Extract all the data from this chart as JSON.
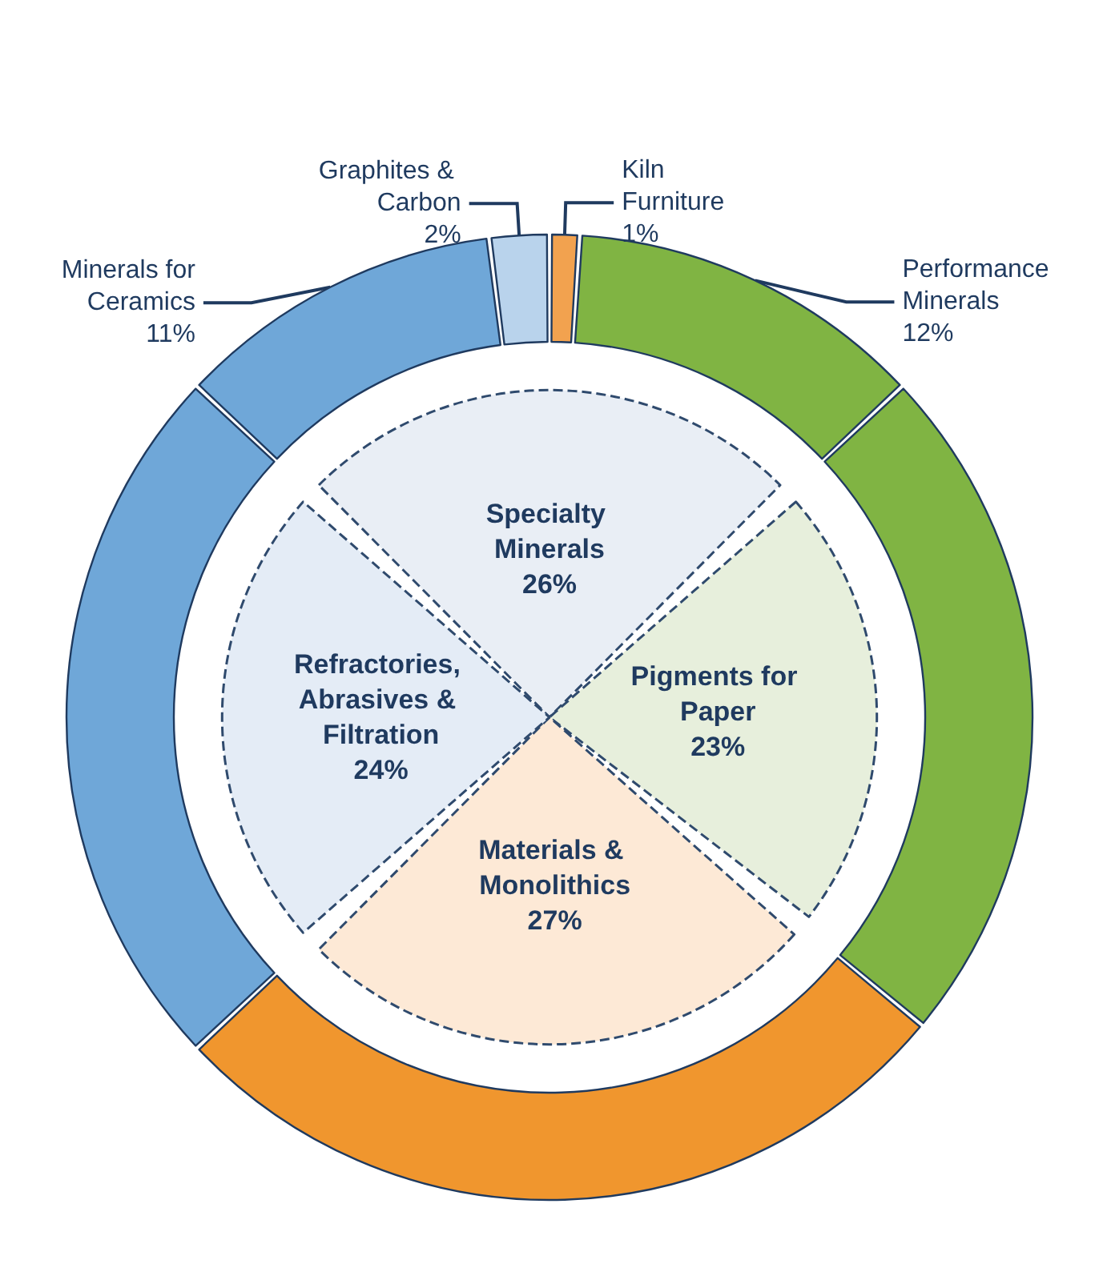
{
  "chart_data": [
    {
      "type": "pie",
      "categories": [
        "Specialty Minerals",
        "Pigments for Paper",
        "Materials & Monolithics",
        "Refractories, Abrasives & Filtration"
      ],
      "values": [
        26,
        23,
        27,
        24
      ],
      "value_labels": [
        "26%",
        "23%",
        "27%",
        "24%"
      ],
      "colors": [
        "#e9eef5",
        "#e7efdc",
        "#fde9d6",
        "#e4ecf6"
      ]
    },
    {
      "type": "donut",
      "categories": [
        "Minerals for Ceramics",
        "Graphites & Carbon",
        "Kiln Furniture",
        "Performance Minerals",
        null,
        null,
        null
      ],
      "values": [
        11,
        2,
        1,
        12,
        23,
        27,
        24
      ],
      "value_labels": [
        "11%",
        "2%",
        "1%",
        "12%",
        null,
        null,
        null
      ],
      "colors": [
        "#6fa7d8",
        "#b9d3ec",
        "#f2a24f",
        "#80b443",
        "#80b443",
        "#f0962e",
        "#6fa7d8"
      ]
    }
  ]
}
